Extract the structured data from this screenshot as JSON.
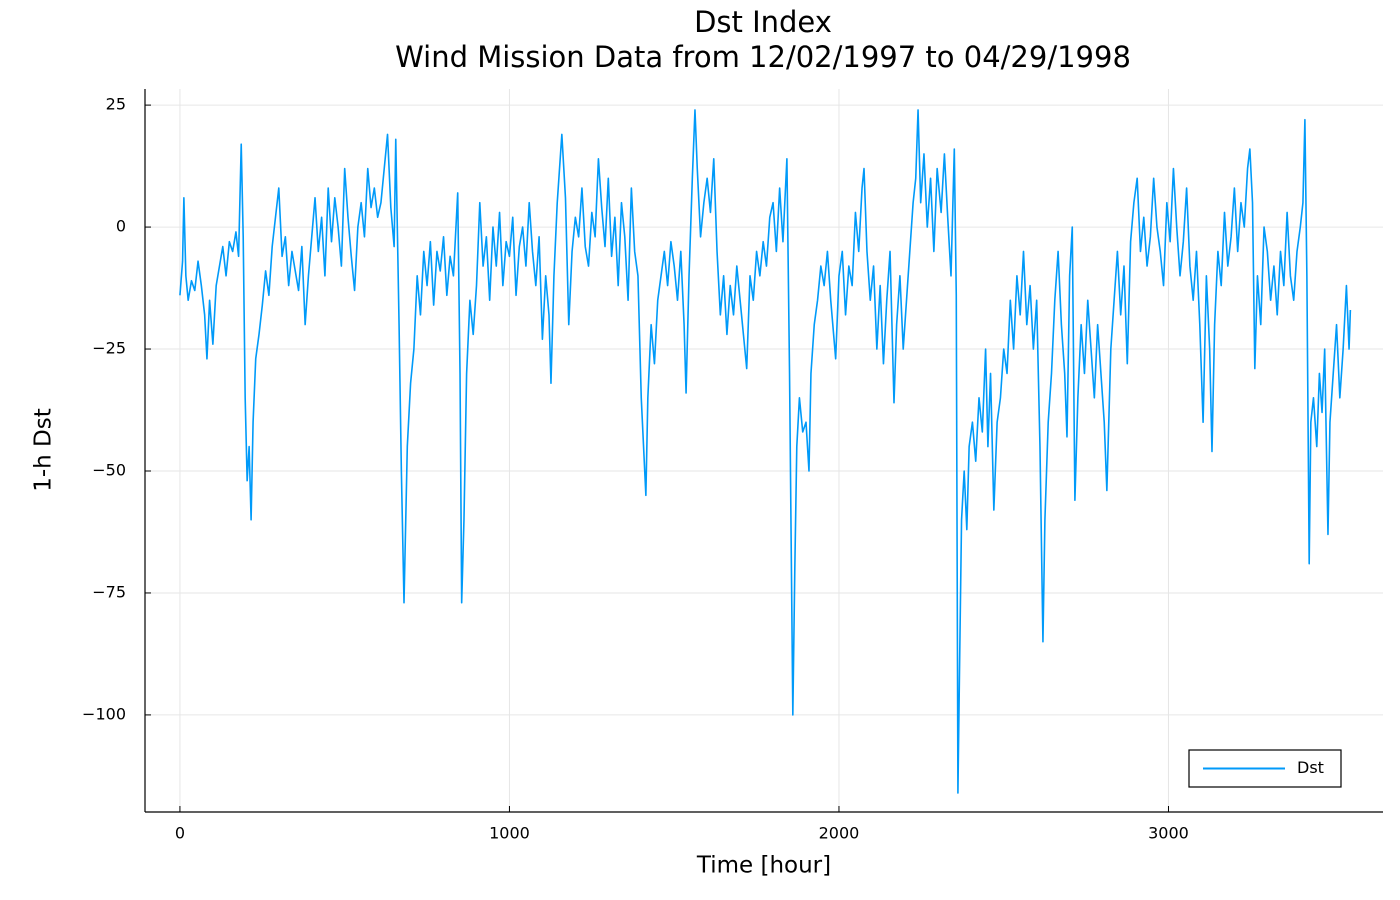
{
  "chart_data": {
    "type": "line",
    "title": "Dst Index",
    "subtitle": "Wind Mission Data from 12/02/1997 to 04/29/1998",
    "x_label": "Time [hour]",
    "y_label": "1-h Dst",
    "xlim": [
      -106,
      3651
    ],
    "ylim": [
      -119.9,
      28.3
    ],
    "xticks": [
      0,
      1000,
      2000,
      3000
    ],
    "yticks": [
      25,
      0,
      {
        "value": -25,
        "label": "−25"
      },
      {
        "value": -50,
        "label": "−50"
      },
      {
        "value": -75,
        "label": "−75"
      },
      {
        "value": -100,
        "label": "−100"
      }
    ],
    "grid": true,
    "legend_position": "lower-right",
    "x": [
      0,
      8,
      12,
      18,
      25,
      35,
      45,
      55,
      65,
      75,
      82,
      90,
      100,
      110,
      120,
      130,
      140,
      150,
      160,
      170,
      178,
      186,
      192,
      198,
      204,
      210,
      216,
      222,
      230,
      240,
      250,
      260,
      270,
      280,
      290,
      300,
      310,
      320,
      330,
      340,
      350,
      360,
      370,
      380,
      390,
      400,
      410,
      420,
      430,
      440,
      450,
      460,
      470,
      480,
      490,
      500,
      510,
      520,
      530,
      540,
      550,
      560,
      570,
      580,
      590,
      600,
      610,
      620,
      630,
      640,
      650,
      655,
      665,
      672,
      680,
      690,
      700,
      710,
      720,
      730,
      740,
      750,
      760,
      770,
      780,
      790,
      800,
      810,
      820,
      830,
      843,
      850,
      855,
      862,
      870,
      880,
      890,
      900,
      910,
      920,
      930,
      940,
      950,
      960,
      970,
      980,
      990,
      1000,
      1010,
      1020,
      1030,
      1040,
      1050,
      1060,
      1070,
      1080,
      1090,
      1100,
      1110,
      1120,
      1126,
      1135,
      1145,
      1159,
      1170,
      1180,
      1190,
      1200,
      1210,
      1220,
      1230,
      1240,
      1250,
      1260,
      1270,
      1280,
      1290,
      1300,
      1310,
      1320,
      1330,
      1340,
      1350,
      1360,
      1370,
      1380,
      1390,
      1400,
      1414,
      1420,
      1430,
      1440,
      1450,
      1460,
      1470,
      1480,
      1490,
      1500,
      1510,
      1520,
      1530,
      1536,
      1545,
      1555,
      1563,
      1570,
      1580,
      1590,
      1600,
      1610,
      1620,
      1630,
      1640,
      1650,
      1660,
      1670,
      1680,
      1690,
      1700,
      1710,
      1720,
      1730,
      1740,
      1750,
      1760,
      1770,
      1780,
      1790,
      1800,
      1810,
      1820,
      1830,
      1842,
      1850,
      1860,
      1866,
      1872,
      1880,
      1890,
      1900,
      1909,
      1915,
      1925,
      1935,
      1945,
      1955,
      1965,
      1975,
      1990,
      2000,
      2010,
      2020,
      2030,
      2040,
      2050,
      2060,
      2070,
      2076,
      2085,
      2095,
      2105,
      2115,
      2125,
      2135,
      2145,
      2155,
      2167,
      2175,
      2185,
      2195,
      2205,
      2215,
      2225,
      2233,
      2240,
      2248,
      2258,
      2268,
      2278,
      2288,
      2298,
      2310,
      2320,
      2330,
      2340,
      2350,
      2356,
      2361,
      2366,
      2372,
      2380,
      2388,
      2395,
      2405,
      2415,
      2425,
      2435,
      2445,
      2452,
      2460,
      2470,
      2480,
      2490,
      2500,
      2510,
      2520,
      2530,
      2540,
      2550,
      2560,
      2570,
      2580,
      2590,
      2600,
      2610,
      2619,
      2625,
      2635,
      2645,
      2655,
      2665,
      2675,
      2685,
      2692,
      2700,
      2708,
      2716,
      2725,
      2735,
      2745,
      2755,
      2765,
      2775,
      2785,
      2795,
      2805,
      2813,
      2825,
      2835,
      2845,
      2855,
      2865,
      2875,
      2885,
      2895,
      2905,
      2915,
      2925,
      2935,
      2945,
      2955,
      2965,
      2975,
      2985,
      2995,
      3005,
      3015,
      3025,
      3035,
      3045,
      3055,
      3065,
      3075,
      3085,
      3095,
      3105,
      3115,
      3125,
      3132,
      3140,
      3150,
      3160,
      3170,
      3180,
      3190,
      3200,
      3210,
      3220,
      3230,
      3240,
      3247,
      3255,
      3262,
      3270,
      3280,
      3290,
      3300,
      3310,
      3320,
      3330,
      3340,
      3350,
      3360,
      3370,
      3380,
      3390,
      3400,
      3408,
      3414,
      3420,
      3427,
      3432,
      3440,
      3450,
      3458,
      3466,
      3474,
      3484,
      3490,
      3500,
      3510,
      3520,
      3530,
      3540,
      3548,
      3552
    ],
    "series": [
      {
        "name": "Dst",
        "color": "#009af9",
        "values": [
          -14,
          -7,
          6,
          -10,
          -15,
          -11,
          -13,
          -7,
          -12,
          -18,
          -27,
          -15,
          -24,
          -12,
          -8,
          -4,
          -10,
          -3,
          -5,
          -1,
          -6,
          17,
          -2,
          -35,
          -52,
          -45,
          -60,
          -40,
          -27,
          -22,
          -16,
          -9,
          -14,
          -4,
          2,
          8,
          -6,
          -2,
          -12,
          -5,
          -9,
          -13,
          -4,
          -20,
          -10,
          -2,
          6,
          -5,
          2,
          -10,
          8,
          -3,
          6,
          0,
          -8,
          12,
          2,
          -6,
          -13,
          0,
          5,
          -2,
          12,
          4,
          8,
          2,
          5,
          12,
          19,
          4,
          -4,
          18,
          -20,
          -50,
          -77,
          -45,
          -32,
          -25,
          -10,
          -18,
          -5,
          -12,
          -3,
          -16,
          -5,
          -9,
          -2,
          -14,
          -6,
          -10,
          7,
          -30,
          -77,
          -60,
          -30,
          -15,
          -22,
          -12,
          5,
          -8,
          -2,
          -15,
          0,
          -8,
          3,
          -12,
          -3,
          -6,
          2,
          -14,
          -4,
          0,
          -8,
          5,
          -5,
          -12,
          -2,
          -23,
          -10,
          -18,
          -32,
          -10,
          5,
          19,
          6,
          -20,
          -5,
          2,
          -2,
          8,
          -4,
          -8,
          3,
          -2,
          14,
          4,
          -4,
          10,
          -6,
          2,
          -12,
          5,
          -2,
          -15,
          8,
          -5,
          -10,
          -35,
          -55,
          -35,
          -20,
          -28,
          -15,
          -10,
          -5,
          -12,
          -3,
          -8,
          -15,
          -5,
          -20,
          -34,
          -10,
          10,
          24,
          12,
          -2,
          5,
          10,
          3,
          14,
          -5,
          -18,
          -10,
          -22,
          -12,
          -18,
          -8,
          -15,
          -22,
          -29,
          -10,
          -15,
          -5,
          -10,
          -3,
          -8,
          2,
          5,
          -5,
          8,
          -3,
          14,
          -30,
          -100,
          -70,
          -45,
          -35,
          -42,
          -40,
          -50,
          -30,
          -20,
          -15,
          -8,
          -12,
          -5,
          -15,
          -27,
          -10,
          -5,
          -18,
          -8,
          -12,
          3,
          -5,
          8,
          12,
          -5,
          -15,
          -8,
          -25,
          -12,
          -28,
          -15,
          -5,
          -36,
          -20,
          -10,
          -25,
          -15,
          -5,
          5,
          10,
          24,
          5,
          15,
          0,
          10,
          -5,
          12,
          3,
          15,
          2,
          -10,
          16,
          -14,
          -116,
          -90,
          -60,
          -50,
          -62,
          -45,
          -40,
          -48,
          -35,
          -42,
          -25,
          -45,
          -30,
          -58,
          -40,
          -35,
          -25,
          -30,
          -15,
          -25,
          -10,
          -18,
          -5,
          -20,
          -12,
          -25,
          -15,
          -45,
          -85,
          -60,
          -40,
          -30,
          -15,
          -5,
          -20,
          -30,
          -43,
          -10,
          0,
          -56,
          -35,
          -20,
          -30,
          -15,
          -25,
          -35,
          -20,
          -30,
          -40,
          -54,
          -25,
          -15,
          -5,
          -18,
          -8,
          -28,
          -3,
          5,
          10,
          -5,
          2,
          -8,
          -2,
          10,
          0,
          -5,
          -12,
          5,
          -3,
          12,
          0,
          -10,
          -3,
          8,
          -8,
          -15,
          -5,
          -20,
          -40,
          -10,
          -25,
          -46,
          -20,
          -5,
          -12,
          3,
          -8,
          -2,
          8,
          -5,
          5,
          0,
          12,
          16,
          5,
          -29,
          -10,
          -20,
          0,
          -5,
          -15,
          -8,
          -18,
          -5,
          -12,
          3,
          -10,
          -15,
          -5,
          0,
          5,
          22,
          -10,
          -69,
          -40,
          -35,
          -45,
          -30,
          -38,
          -25,
          -63,
          -40,
          -30,
          -20,
          -35,
          -25,
          -12,
          -25,
          -17
        ]
      }
    ]
  }
}
